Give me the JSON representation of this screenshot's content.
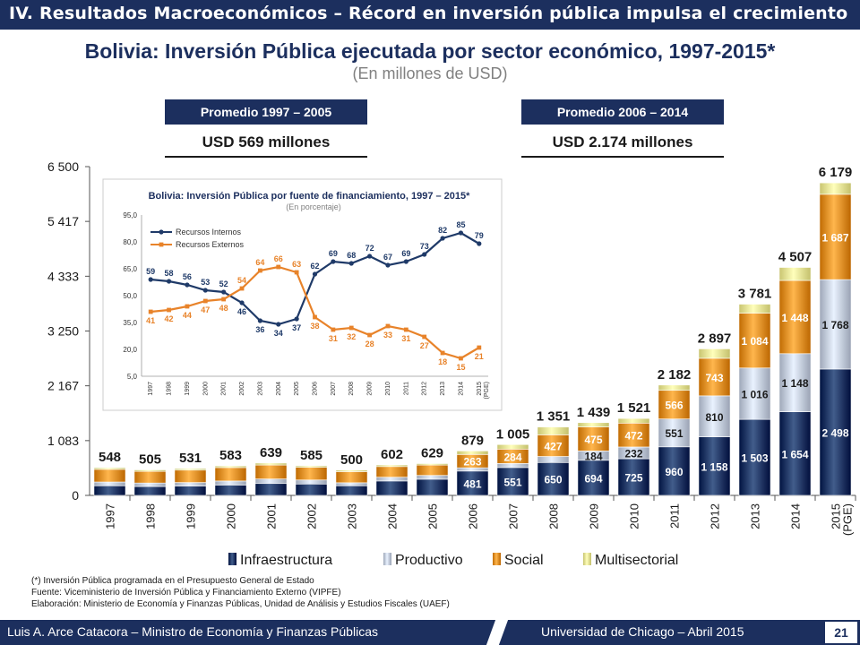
{
  "header": {
    "section": "IV. Resultados Macroeconómicos – Récord en inversión pública impulsa el crecimiento"
  },
  "title": "Bolivia: Inversión Pública ejecutada por sector económico, 1997-2015*",
  "subtitle": "(En millones de USD)",
  "averages": [
    {
      "period": "Promedio 1997 – 2005",
      "value": "USD 569 millones"
    },
    {
      "period": "Promedio 2006 – 2014",
      "value": "USD 2.174 millones"
    }
  ],
  "colors": {
    "navy": "#1c2f5e",
    "infra": "#1f3a68",
    "productivo": "#c6cfe0",
    "social": "#e8932a",
    "multi": "#f0ec98",
    "recursos_internos": "#1f3a68",
    "recursos_externos": "#e8832a"
  },
  "chart_data": [
    {
      "type": "bar",
      "stacked": true,
      "categories": [
        "1997",
        "1998",
        "1999",
        "2000",
        "2001",
        "2002",
        "2003",
        "2004",
        "2005",
        "2006",
        "2007",
        "2008",
        "2009",
        "2010",
        "2011",
        "2012",
        "2013",
        "2014",
        "2015 (PGE)"
      ],
      "series": [
        {
          "name": "Infraestructura",
          "values": [
            190,
            175,
            185,
            205,
            235,
            225,
            190,
            285,
            320,
            481,
            551,
            650,
            694,
            725,
            960,
            1158,
            1503,
            1654,
            2498
          ]
        },
        {
          "name": "Productivo",
          "values": [
            75,
            70,
            70,
            80,
            90,
            80,
            60,
            75,
            75,
            65,
            80,
            120,
            184,
            232,
            551,
            810,
            1016,
            1148,
            1768
          ]
        },
        {
          "name": "Social",
          "values": [
            250,
            230,
            245,
            265,
            275,
            250,
            220,
            210,
            205,
            263,
            284,
            427,
            475,
            472,
            566,
            743,
            1084,
            1448,
            1687
          ]
        },
        {
          "name": "Multisectorial",
          "values": [
            33,
            30,
            31,
            33,
            39,
            30,
            30,
            32,
            29,
            70,
            90,
            154,
            86,
            92,
            105,
            186,
            178,
            257,
            226
          ]
        }
      ],
      "totals": [
        548,
        505,
        531,
        583,
        639,
        585,
        500,
        602,
        629,
        879,
        1005,
        1351,
        1439,
        1521,
        2182,
        2897,
        3781,
        4507,
        6179
      ],
      "total_labels": [
        "548",
        "505",
        "531",
        "583",
        "639",
        "585",
        "500",
        "602",
        "629",
        "879",
        "1 005",
        "1 351",
        "1 439",
        "1 521",
        "2 182",
        "2 897",
        "3 781",
        "4 507",
        "6 179"
      ],
      "value_labels": {
        "Infraestructura": [
          "",
          "",
          "",
          "",
          "",
          "",
          "",
          "",
          "",
          "481",
          "551",
          "650",
          "694",
          "725",
          "960",
          "1 158",
          "1 503",
          "1 654",
          "2 498"
        ],
        "Productivo": [
          "",
          "",
          "",
          "",
          "",
          "",
          "",
          "",
          "",
          "",
          "",
          "",
          "184",
          "232",
          "551",
          "810",
          "1 016",
          "1 148",
          "1 768"
        ],
        "Social": [
          "",
          "",
          "",
          "",
          "",
          "",
          "",
          "",
          "",
          "263",
          "284",
          "427",
          "475",
          "472",
          "566",
          "743",
          "1 084",
          "1 448",
          "1 687"
        ]
      },
      "y_ticks": [
        "0",
        "1 083",
        "2 167",
        "3 250",
        "4 333",
        "5 417",
        "6 500"
      ],
      "y_tick_values": [
        0,
        1083,
        2167,
        3250,
        4333,
        5417,
        6500
      ],
      "ylim": [
        0,
        6500
      ],
      "legend": [
        "Infraestructura",
        "Productivo",
        "Social",
        "Multisectorial"
      ],
      "legend_position": "bottom"
    },
    {
      "type": "line",
      "title": "Bolivia: Inversión Pública por fuente de financiamiento, 1997 – 2015*",
      "subtitle": "(En porcentaje)",
      "x": [
        "1997",
        "1998",
        "1999",
        "2000",
        "2001",
        "2002",
        "2003",
        "2004",
        "2005",
        "2006",
        "2007",
        "2008",
        "2009",
        "2010",
        "2011",
        "2012",
        "2013",
        "2014",
        "2015 (PGE)"
      ],
      "series": [
        {
          "name": "Recursos Internos",
          "values": [
            59,
            58,
            56,
            53,
            52,
            46,
            36,
            34,
            37,
            62,
            69,
            68,
            72,
            67,
            69,
            73,
            82,
            85,
            79
          ]
        },
        {
          "name": "Recursos Externos",
          "values": [
            41,
            42,
            44,
            47,
            48,
            54,
            64,
            66,
            63,
            38,
            31,
            32,
            28,
            33,
            31,
            27,
            18,
            15,
            21
          ]
        }
      ],
      "y_ticks": [
        "5,0",
        "20,0",
        "35,0",
        "50,0",
        "65,0",
        "80,0",
        "95,0"
      ],
      "y_tick_values": [
        5,
        20,
        35,
        50,
        65,
        80,
        95
      ],
      "ylim": [
        5,
        95
      ],
      "legend_position": "top-left"
    }
  ],
  "footnotes": [
    "(*) Inversión Pública programada en el Presupuesto General de Estado",
    "Fuente: Viceministerio de Inversión Pública y Financiamiento Externo (VIPFE)",
    "Elaboración: Ministerio de Economía y Finanzas Públicas, Unidad de Análisis y Estudios Fiscales (UAEF)"
  ],
  "footer": {
    "left": "Luis A. Arce Catacora – Ministro de Economía y Finanzas Públicas",
    "right": "Universidad de Chicago – Abril 2015",
    "page": "21"
  }
}
